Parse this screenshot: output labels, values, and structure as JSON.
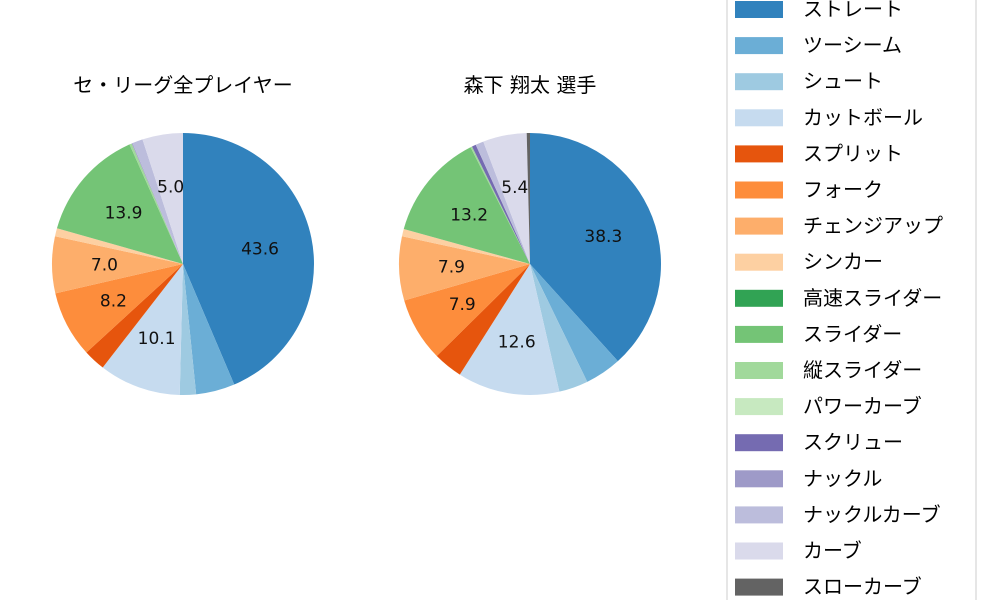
{
  "chart_data": {
    "type": "pie",
    "legend": {
      "placement": "right",
      "entries": [
        "ストレート",
        "ツーシーム",
        "シュート",
        "カットボール",
        "スプリット",
        "フォーク",
        "チェンジアップ",
        "シンカー",
        "高速スライダー",
        "スライダー",
        "縦スライダー",
        "パワーカーブ",
        "スクリュー",
        "ナックル",
        "ナックルカーブ",
        "カーブ",
        "スローカーブ"
      ],
      "colors": [
        "#3182bd",
        "#6baed6",
        "#9ecae1",
        "#c6dbef",
        "#e6550d",
        "#fd8d3c",
        "#fdae6b",
        "#fdd0a2",
        "#31a354",
        "#74c476",
        "#a1d99b",
        "#c7e9c0",
        "#756bb1",
        "#9e9ac8",
        "#bcbddc",
        "#dadaeb",
        "#636363"
      ]
    },
    "start_angle": 90,
    "direction": "clockwise",
    "label_threshold": 5,
    "pies": [
      {
        "title": "セ・リーグ全プレイヤー",
        "values": [
          43.6,
          4.8,
          2.0,
          10.1,
          2.7,
          8.2,
          7.0,
          1.0,
          0,
          13.9,
          0.3,
          0,
          0,
          0.1,
          1.3,
          5.0,
          0
        ]
      },
      {
        "title": "森下 翔太  選手",
        "values": [
          38.3,
          4.5,
          3.6,
          12.6,
          3.6,
          7.9,
          7.9,
          0.9,
          0,
          13.2,
          0.2,
          0,
          0.5,
          0,
          1.0,
          5.4,
          0.4
        ]
      }
    ]
  }
}
